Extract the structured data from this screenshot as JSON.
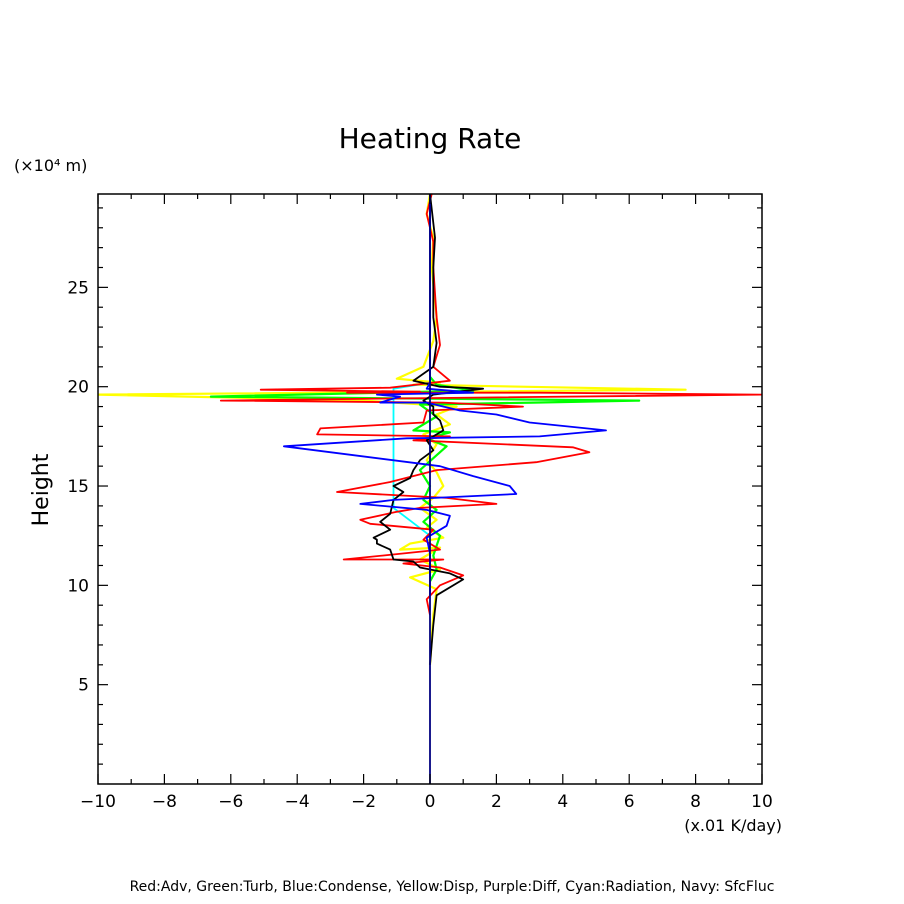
{
  "chart_data": {
    "type": "line",
    "title": "Heating Rate",
    "ylabel": "Height",
    "yunit": "(×10⁴ m)",
    "xunit": "(x.01 K/day)",
    "xlim": [
      -10,
      10
    ],
    "ylim": [
      0,
      29.7
    ],
    "xticks": [
      -10,
      -8,
      -6,
      -4,
      -2,
      0,
      2,
      4,
      6,
      8,
      10
    ],
    "yticks": [
      5,
      10,
      15,
      20,
      25
    ],
    "grid": false,
    "legend_text": "Red:Adv, Green:Turb, Blue:Condense, Yellow:Disp, Purple:Diff, Cyan:Radiation, Navy: SfcFluc",
    "series": [
      {
        "name": "Yellow:Disp",
        "color": "#ffff00",
        "points": [
          [
            0,
            6
          ],
          [
            0.1,
            8.5
          ],
          [
            0.2,
            9.8
          ],
          [
            -0.6,
            10.4
          ],
          [
            0.3,
            10.8
          ],
          [
            -0.3,
            11.3
          ],
          [
            0.3,
            11.9
          ],
          [
            -0.9,
            11.8
          ],
          [
            -0.6,
            12.1
          ],
          [
            0.4,
            12.4
          ],
          [
            -0.1,
            12.9
          ],
          [
            0.2,
            13.3
          ],
          [
            -0.3,
            13.9
          ],
          [
            0.1,
            14.4
          ],
          [
            0.4,
            15.0
          ],
          [
            0.2,
            15.7
          ],
          [
            -0.1,
            16.3
          ],
          [
            0.2,
            17.1
          ],
          [
            -0.2,
            17.6
          ],
          [
            0.6,
            18.1
          ],
          [
            0.2,
            18.6
          ],
          [
            0.8,
            19.0
          ],
          [
            -2,
            19.3
          ],
          [
            -10,
            19.6
          ],
          [
            7.7,
            19.85
          ],
          [
            -0.5,
            20.1
          ],
          [
            0.3,
            20.2
          ],
          [
            -1,
            20.4
          ],
          [
            -0.2,
            21.0
          ],
          [
            0.1,
            22.3
          ],
          [
            0.2,
            23.5
          ],
          [
            0.05,
            26
          ],
          [
            0.1,
            27.5
          ],
          [
            -0.1,
            28.7
          ],
          [
            0,
            29.7
          ]
        ]
      },
      {
        "name": "Green:Turb",
        "color": "#00ff00",
        "points": [
          [
            0,
            10.2
          ],
          [
            0.2,
            10.8
          ],
          [
            0.1,
            11.5
          ],
          [
            0.3,
            12.5
          ],
          [
            -0.2,
            13.2
          ],
          [
            0.2,
            13.8
          ],
          [
            -0.2,
            14.3
          ],
          [
            0,
            15.0
          ],
          [
            -0.3,
            15.8
          ],
          [
            0.1,
            16.4
          ],
          [
            0.5,
            17.0
          ],
          [
            -0.1,
            17.4
          ],
          [
            0.6,
            17.7
          ],
          [
            -0.5,
            17.8
          ],
          [
            0.2,
            18.5
          ],
          [
            -0.3,
            19.1
          ],
          [
            3.1,
            19.2
          ],
          [
            6.3,
            19.3
          ],
          [
            -6.6,
            19.5
          ],
          [
            1.3,
            19.8
          ],
          [
            0.2,
            20.1
          ],
          [
            0,
            20.5
          ]
        ]
      },
      {
        "name": "Cyan:Radiation",
        "color": "#00ffff",
        "points": [
          [
            0,
            12.5
          ],
          [
            -1.1,
            13.9
          ],
          [
            -1.1,
            19.9
          ],
          [
            0,
            20.2
          ],
          [
            0,
            22
          ]
        ]
      },
      {
        "name": "Red:Adv",
        "color": "#ff0000",
        "points": [
          [
            0,
            8.5
          ],
          [
            -0.1,
            9.3
          ],
          [
            0.3,
            10.0
          ],
          [
            1.0,
            10.5
          ],
          [
            0.3,
            10.9
          ],
          [
            -0.8,
            11.1
          ],
          [
            0.4,
            11.3
          ],
          [
            -2.6,
            11.3
          ],
          [
            -1.4,
            11.5
          ],
          [
            0.3,
            11.8
          ],
          [
            -0.2,
            12.3
          ],
          [
            0.1,
            12.8
          ],
          [
            -1.8,
            13.1
          ],
          [
            -2.1,
            13.3
          ],
          [
            -1.0,
            13.7
          ],
          [
            -0.3,
            13.9
          ],
          [
            2.0,
            14.1
          ],
          [
            0.5,
            14.4
          ],
          [
            -2.8,
            14.7
          ],
          [
            -1.2,
            15.2
          ],
          [
            0.2,
            15.8
          ],
          [
            3.2,
            16.2
          ],
          [
            4.8,
            16.7
          ],
          [
            4.3,
            16.95
          ],
          [
            -0.5,
            17.3
          ],
          [
            0.6,
            17.5
          ],
          [
            -3.4,
            17.6
          ],
          [
            -3.3,
            17.9
          ],
          [
            -0.2,
            18.2
          ],
          [
            -0.1,
            18.8
          ],
          [
            2.8,
            19.0
          ],
          [
            0.4,
            19.2
          ],
          [
            -6.3,
            19.3
          ],
          [
            -1.5,
            19.4
          ],
          [
            10,
            19.6
          ],
          [
            3.3,
            19.7
          ],
          [
            -2.5,
            19.7
          ],
          [
            -0.3,
            19.75
          ],
          [
            -5.1,
            19.85
          ],
          [
            -1.2,
            19.95
          ],
          [
            0.6,
            20.3
          ],
          [
            0.1,
            21.0
          ],
          [
            0.3,
            22.1
          ],
          [
            0.2,
            23.5
          ],
          [
            0.1,
            26.0
          ],
          [
            0.1,
            27.3
          ],
          [
            -0.1,
            28.7
          ],
          [
            0.05,
            29.7
          ]
        ]
      },
      {
        "name": "Black",
        "color": "#000000",
        "points": [
          [
            0,
            6
          ],
          [
            0.1,
            8.0
          ],
          [
            0.2,
            9.5
          ],
          [
            1.0,
            10.3
          ],
          [
            0.6,
            10.6
          ],
          [
            -0.3,
            10.9
          ],
          [
            -0.5,
            11.2
          ],
          [
            -1.1,
            11.3
          ],
          [
            -1.2,
            11.8
          ],
          [
            -1.6,
            12.1
          ],
          [
            -1.6,
            12.3
          ],
          [
            -1.7,
            12.4
          ],
          [
            -1.2,
            12.8
          ],
          [
            -1.5,
            13.2
          ],
          [
            -1.2,
            13.6
          ],
          [
            -1.1,
            14.3
          ],
          [
            -0.8,
            14.7
          ],
          [
            -1.1,
            15.0
          ],
          [
            -0.6,
            15.4
          ],
          [
            -0.5,
            15.8
          ],
          [
            -0.3,
            16.3
          ],
          [
            0.1,
            16.8
          ],
          [
            -0.1,
            17.3
          ],
          [
            0.4,
            17.8
          ],
          [
            0.3,
            18.3
          ],
          [
            0.1,
            18.6
          ],
          [
            0.1,
            19.0
          ],
          [
            -0.2,
            19.3
          ],
          [
            0.1,
            19.6
          ],
          [
            1.6,
            19.9
          ],
          [
            0.3,
            20.0
          ],
          [
            -0.5,
            20.3
          ],
          [
            0.1,
            21.0
          ],
          [
            0.2,
            22.2
          ],
          [
            0.1,
            23.5
          ],
          [
            0.1,
            26
          ],
          [
            0.15,
            27.5
          ],
          [
            0,
            29.7
          ]
        ]
      },
      {
        "name": "Blue:Condense",
        "color": "#0000ff",
        "points": [
          [
            0,
            9.5
          ],
          [
            0,
            11.6
          ],
          [
            -0.1,
            12.4
          ],
          [
            0.5,
            13.0
          ],
          [
            0.6,
            13.5
          ],
          [
            -0.1,
            13.8
          ],
          [
            -2.1,
            14.1
          ],
          [
            -1.1,
            14.3
          ],
          [
            2.6,
            14.6
          ],
          [
            2.4,
            15.0
          ],
          [
            1.3,
            15.5
          ],
          [
            0.3,
            16.0
          ],
          [
            -4.4,
            17.0
          ],
          [
            -0.7,
            17.4
          ],
          [
            3.3,
            17.5
          ],
          [
            5.3,
            17.8
          ],
          [
            3.0,
            18.2
          ],
          [
            2.0,
            18.6
          ],
          [
            0.9,
            18.8
          ],
          [
            -0.1,
            19.2
          ],
          [
            -1.5,
            19.2
          ],
          [
            -0.9,
            19.5
          ],
          [
            -1.6,
            19.6
          ],
          [
            1.3,
            19.7
          ],
          [
            -0.1,
            19.9
          ],
          [
            0,
            20.2
          ],
          [
            0,
            29.7
          ]
        ]
      },
      {
        "name": "Navy: SfcFluc",
        "color": "#000080",
        "points": [
          [
            0,
            0
          ],
          [
            0,
            29.7
          ]
        ]
      }
    ]
  }
}
